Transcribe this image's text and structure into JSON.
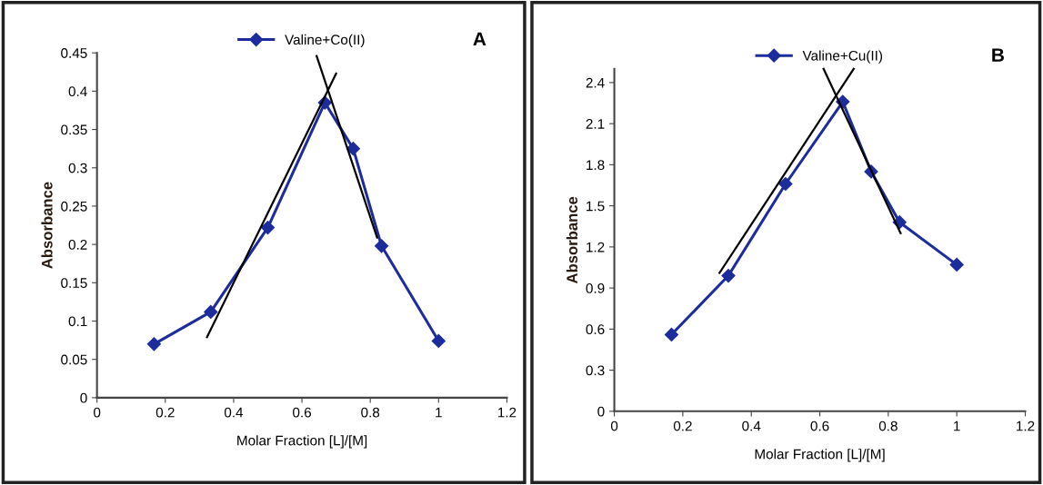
{
  "chart_data": [
    {
      "type": "line",
      "annotations": [
        "A"
      ],
      "xlabel": "Molar Fraction [L]/[M]",
      "ylabel": "Absorbance",
      "xlim": [
        0,
        1.2
      ],
      "xticks": [
        0,
        0.2,
        0.4,
        0.6,
        0.8,
        1,
        1.2
      ],
      "ylim": [
        0,
        0.45
      ],
      "yticks": [
        0,
        0.05,
        0.1,
        0.15,
        0.2,
        0.25,
        0.3,
        0.35,
        0.4,
        0.45
      ],
      "grid": false,
      "legend": "top",
      "series": [
        {
          "name": "Valine+Co(II)",
          "color": "#1c2c9c",
          "marker": "diamond",
          "x": [
            0.167,
            0.333,
            0.5,
            0.667,
            0.75,
            0.833,
            1.0
          ],
          "values": [
            0.07,
            0.112,
            0.222,
            0.385,
            0.325,
            0.198,
            0.074
          ]
        },
        {
          "color": "#000000",
          "marker": "none",
          "x": [
            0.322,
            0.7
          ],
          "values": [
            0.079,
            0.423
          ]
        },
        {
          "color": "#000000",
          "marker": "none",
          "x": [
            0.643,
            0.82
          ],
          "values": [
            0.446,
            0.209
          ]
        }
      ]
    },
    {
      "type": "line",
      "annotations": [
        "B"
      ],
      "xlabel": "Molar Fraction [L]/[M]",
      "ylabel": "Absorbance",
      "xlim": [
        0,
        1.2
      ],
      "xticks": [
        0,
        0.2,
        0.4,
        0.6,
        0.8,
        1,
        1.2
      ],
      "ylim": [
        0,
        2.5
      ],
      "yticks": [
        0,
        0.3,
        0.6,
        0.9,
        1.2,
        1.5,
        1.8,
        2.1,
        2.4
      ],
      "grid": false,
      "legend": "top",
      "series": [
        {
          "name": "Valine+Cu(II)",
          "color": "#1c2c9c",
          "marker": "diamond",
          "x": [
            0.167,
            0.333,
            0.5,
            0.667,
            0.75,
            0.833,
            1.0
          ],
          "values": [
            0.56,
            0.99,
            1.66,
            2.26,
            1.75,
            1.38,
            1.07
          ]
        },
        {
          "color": "#000000",
          "marker": "none",
          "x": [
            0.307,
            0.699
          ],
          "values": [
            1.01,
            2.5
          ]
        },
        {
          "color": "#000000",
          "marker": "none",
          "x": [
            0.611,
            0.836
          ],
          "values": [
            2.5,
            1.3
          ]
        }
      ]
    }
  ]
}
